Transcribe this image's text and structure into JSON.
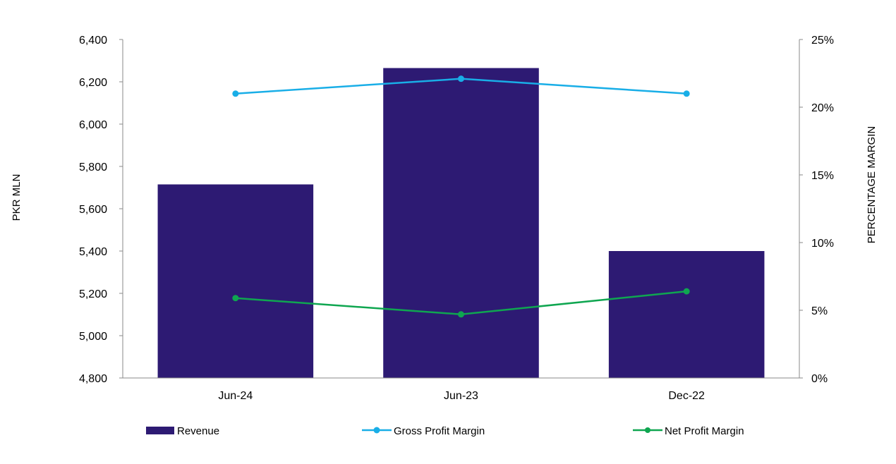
{
  "chart_data": {
    "type": "bar",
    "categories": [
      "Jun-24",
      "Jun-23",
      "Dec-22"
    ],
    "ylabel": "PKR MLN",
    "y2label": "PERCENTAGE MARGIN",
    "ylim": [
      4800,
      6400
    ],
    "yticks": [
      "4,800",
      "5,000",
      "5,200",
      "5,400",
      "5,600",
      "5,800",
      "6,000",
      "6,200",
      "6,400"
    ],
    "y2lim": [
      0,
      25
    ],
    "y2ticks": [
      "0%",
      "5%",
      "10%",
      "15%",
      "20%",
      "25%"
    ],
    "series": [
      {
        "name": "Revenue",
        "type": "bar",
        "axis": "left",
        "color": "#2d1a73",
        "values": [
          5715,
          6265,
          5400
        ]
      },
      {
        "name": "Gross Profit Margin",
        "type": "line",
        "axis": "right",
        "color": "#19aee7",
        "values": [
          21.0,
          22.1,
          21.0
        ]
      },
      {
        "name": "Net Profit Margin",
        "type": "line",
        "axis": "right",
        "color": "#0fa650",
        "values": [
          5.9,
          4.7,
          6.4
        ]
      }
    ],
    "grid": false,
    "legend": "bottom"
  }
}
